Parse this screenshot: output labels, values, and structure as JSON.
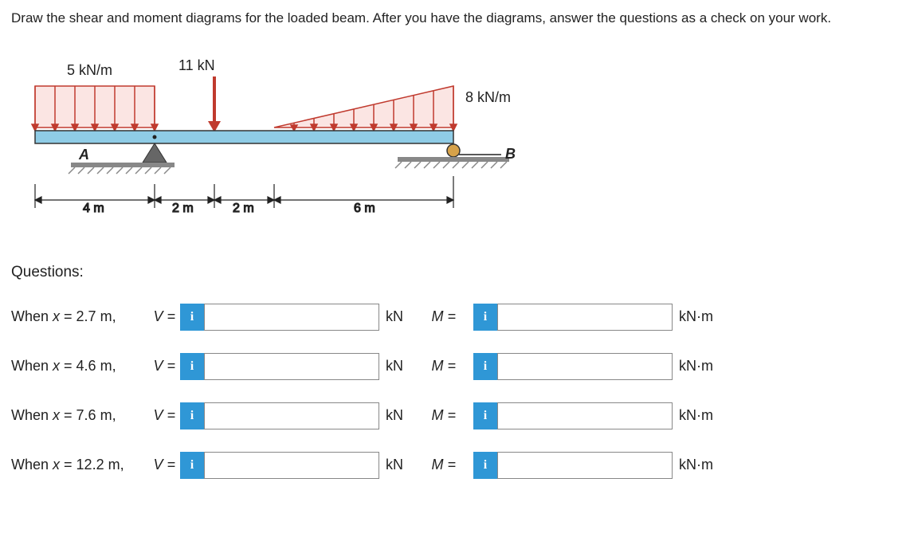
{
  "prompt": "Draw the shear and moment diagrams for the loaded beam. After you have the diagrams, answer the questions as a check on your work.",
  "diagram": {
    "dist_load_left": "5 kN/m",
    "point_load": "11 kN",
    "dist_load_right": "8 kN/m",
    "support_left": "A",
    "support_right": "B",
    "dim_4m": "4 m",
    "dim_2m_a": "2 m",
    "dim_2m_b": "2 m",
    "dim_6m": "6 m",
    "beam_color": "#8fcce6",
    "load_color": "#c03a2e",
    "dist_fill": "#fbe5e3",
    "ground_hatch": "#999"
  },
  "questions_header": "Questions:",
  "rows": [
    {
      "x": "2.7 m",
      "label": "When x = 2.7 m,",
      "v_eq": "V =",
      "m_eq": "M ="
    },
    {
      "x": "4.6 m",
      "label": "When x = 4.6 m,",
      "v_eq": "V =",
      "m_eq": "M ="
    },
    {
      "x": "7.6 m",
      "label": "When x = 7.6 m,",
      "v_eq": "V =",
      "m_eq": "M ="
    },
    {
      "x": "12.2 m",
      "label": "When x = 12.2 m,",
      "v_eq": "V =",
      "m_eq": "M ="
    }
  ],
  "units": {
    "v": "kN",
    "m": "kN·m"
  },
  "info_glyph": "i"
}
